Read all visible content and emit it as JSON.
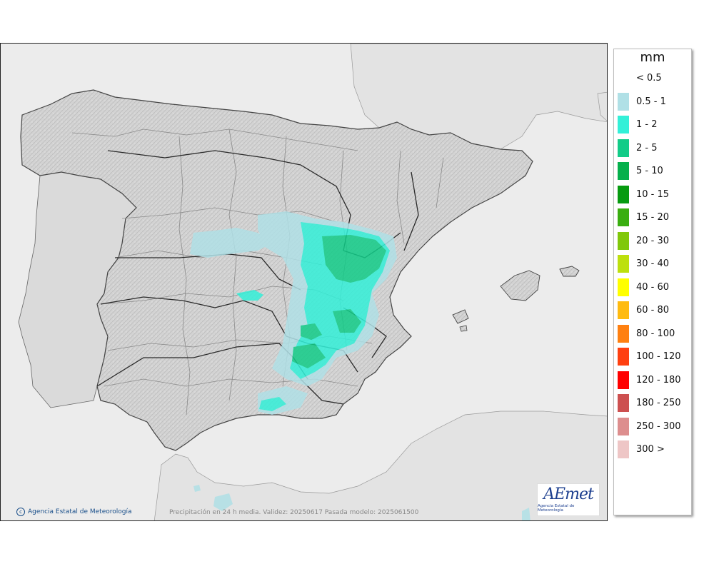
{
  "map": {
    "credit": "Agencia Estatal de Meteorología",
    "caption": "Precipitación en 24 h media. Validez: 20250617 Pasada modelo: 2025061500",
    "logo_text": "AEmet",
    "logo_subtitle": "Agencia Estatal de Meteorología",
    "land_color": "#d6d6d6",
    "sea_color": "#ececec",
    "icons": [
      "copyright-icon",
      "aemet-logo"
    ]
  },
  "legend": {
    "title": "mm",
    "items": [
      {
        "label": "< 0.5",
        "color": "#ffffff"
      },
      {
        "label": "0.5 - 1",
        "color": "#b0e0e6"
      },
      {
        "label": "1 - 2",
        "color": "#33f0d8"
      },
      {
        "label": "2 - 5",
        "color": "#12cc88"
      },
      {
        "label": "5 - 10",
        "color": "#05b04c"
      },
      {
        "label": "10 - 15",
        "color": "#069b10"
      },
      {
        "label": "15 - 20",
        "color": "#3aae10"
      },
      {
        "label": "20 - 30",
        "color": "#80c80a"
      },
      {
        "label": "30 - 40",
        "color": "#bde00e"
      },
      {
        "label": "40 - 60",
        "color": "#ffff00"
      },
      {
        "label": "60 - 80",
        "color": "#ffbb10"
      },
      {
        "label": "80 - 100",
        "color": "#ff8010"
      },
      {
        "label": "100 - 120",
        "color": "#ff4010"
      },
      {
        "label": "120 - 180",
        "color": "#ff0000"
      },
      {
        "label": "180 - 250",
        "color": "#cd5050"
      },
      {
        "label": "250 - 300",
        "color": "#dd8e8e"
      },
      {
        "label": "300 >",
        "color": "#eec6c6"
      }
    ]
  }
}
